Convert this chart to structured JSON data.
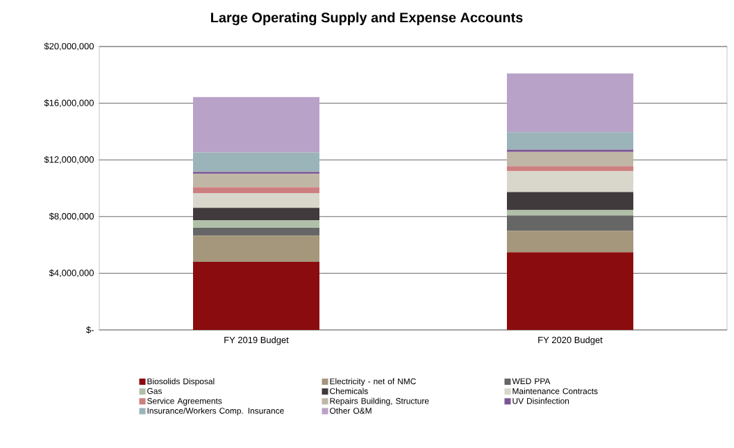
{
  "chart_data": {
    "type": "bar",
    "stacked": true,
    "title": "Large Operating Supply and Expense Accounts",
    "categories": [
      "FY 2019 Budget",
      "FY 2020 Budget"
    ],
    "series": [
      {
        "name": "Biosolids Disposal",
        "color": "#8b0c0e",
        "values": [
          4810000,
          5480000
        ]
      },
      {
        "name": "Electricity - net of NMC",
        "color": "#a5977b",
        "values": [
          1840000,
          1520000
        ]
      },
      {
        "name": "WED PPA",
        "color": "#666666",
        "values": [
          550000,
          1070000
        ]
      },
      {
        "name": "Gas",
        "color": "#b1c0a8",
        "values": [
          530000,
          380000
        ]
      },
      {
        "name": "Chemicals",
        "color": "#403a3c",
        "values": [
          880000,
          1280000
        ]
      },
      {
        "name": "Maintenance Contracts",
        "color": "#d9d6cc",
        "values": [
          1050000,
          1470000
        ]
      },
      {
        "name": "Service Agreements",
        "color": "#cd7f7f",
        "values": [
          410000,
          360000
        ]
      },
      {
        "name": "Repairs Building, Structure",
        "color": "#bfb6a6",
        "values": [
          950000,
          1000000
        ]
      },
      {
        "name": "UV Disinfection",
        "color": "#7a5593",
        "values": [
          130000,
          160000
        ]
      },
      {
        "name": "Insurance/Workers Comp. Insurance",
        "color": "#9bb4ba",
        "values": [
          1370000,
          1240000
        ]
      },
      {
        "name": "Other O&M",
        "color": "#b9a2c8",
        "values": [
          3910000,
          4140000
        ]
      }
    ],
    "ylim": [
      0,
      20000000
    ],
    "yticks": [
      {
        "value": 0,
        "label": "$-"
      },
      {
        "value": 4000000,
        "label": "$4,000,000"
      },
      {
        "value": 8000000,
        "label": "$8,000,000"
      },
      {
        "value": 12000000,
        "label": "$12,000,000"
      },
      {
        "value": 16000000,
        "label": "$16,000,000"
      },
      {
        "value": 20000000,
        "label": "$20,000,000"
      }
    ],
    "grid": "y",
    "legend": "bottom"
  }
}
